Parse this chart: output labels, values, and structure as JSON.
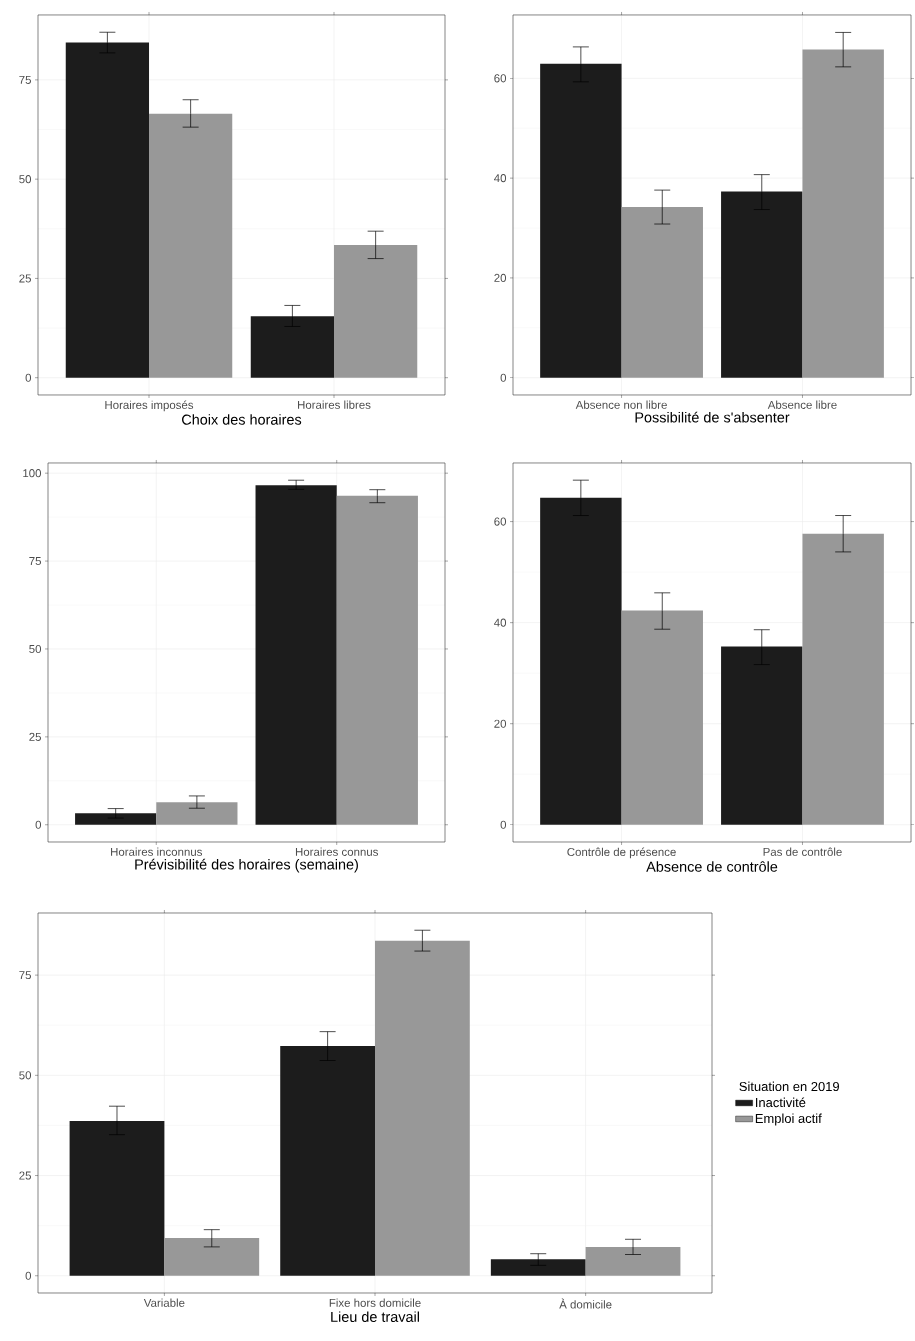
{
  "chart_data": [
    {
      "type": "bar",
      "xlabel": "Choix des horaires",
      "categories": [
        "Horaires imposés",
        "Horaires libres"
      ],
      "ylim": [
        -4.35,
        91.35
      ],
      "yticks": [
        0,
        25,
        50,
        75
      ],
      "grid": true,
      "series": [
        {
          "color": "#1c1c1c",
          "values": [
            84.4,
            15.5
          ],
          "errors": [
            [
              81.8,
              87.0
            ],
            [
              12.9,
              18.2
            ]
          ]
        },
        {
          "color": "#989898",
          "values": [
            66.5,
            33.4
          ],
          "errors": [
            [
              63.1,
              70.0
            ],
            [
              30.0,
              36.9
            ]
          ]
        }
      ]
    },
    {
      "type": "bar",
      "xlabel": "Possibilité de s'absenter",
      "categories": [
        "Absence non libre",
        "Absence libre"
      ],
      "ylim": [
        -3.46,
        72.7
      ],
      "yticks": [
        0,
        20,
        40,
        60
      ],
      "grid": true,
      "series": [
        {
          "color": "#1c1c1c",
          "values": [
            62.9,
            37.3
          ],
          "errors": [
            [
              59.3,
              66.3
            ],
            [
              33.7,
              40.7
            ]
          ]
        },
        {
          "color": "#989898",
          "values": [
            34.2,
            65.8
          ],
          "errors": [
            [
              30.8,
              37.6
            ],
            [
              62.3,
              69.2
            ]
          ]
        }
      ]
    },
    {
      "type": "bar",
      "xlabel": "Prévisibilité des horaires (semaine)",
      "categories": [
        "Horaires inconnus",
        "Horaires connus"
      ],
      "ylim": [
        -4.9,
        102.9
      ],
      "yticks": [
        0,
        25,
        50,
        75,
        100
      ],
      "grid": true,
      "series": [
        {
          "color": "#1c1c1c",
          "values": [
            3.3,
            96.6
          ],
          "errors": [
            [
              1.9,
              4.6
            ],
            [
              95.4,
              98.0
            ]
          ]
        },
        {
          "color": "#989898",
          "values": [
            6.4,
            93.6
          ],
          "errors": [
            [
              4.7,
              8.2
            ],
            [
              91.6,
              95.3
            ]
          ]
        }
      ]
    },
    {
      "type": "bar",
      "xlabel": "Absence de contrôle",
      "categories": [
        "Contrôle de présence",
        "Pas de contrôle"
      ],
      "ylim": [
        -3.41,
        71.6
      ],
      "yticks": [
        0,
        20,
        40,
        60
      ],
      "grid": true,
      "series": [
        {
          "color": "#1c1c1c",
          "values": [
            64.7,
            35.3
          ],
          "errors": [
            [
              61.2,
              68.2
            ],
            [
              31.7,
              38.6
            ]
          ]
        },
        {
          "color": "#989898",
          "values": [
            42.4,
            57.6
          ],
          "errors": [
            [
              38.7,
              45.9
            ],
            [
              54.0,
              61.2
            ]
          ]
        }
      ]
    },
    {
      "type": "bar",
      "xlabel": "Lieu de travail",
      "categories": [
        "Variable",
        "Fixe hors domicile",
        "À domicile"
      ],
      "ylim": [
        -4.3,
        90.5
      ],
      "yticks": [
        0,
        25,
        50,
        75
      ],
      "grid": true,
      "legend": "right",
      "legend_title": "Situation en 2019",
      "series": [
        {
          "name": "Inactivité",
          "color": "#1c1c1c",
          "values": [
            38.6,
            57.3,
            4.1
          ],
          "errors": [
            [
              35.2,
              42.3
            ],
            [
              53.7,
              60.9
            ],
            [
              2.6,
              5.5
            ]
          ]
        },
        {
          "name": "Emploi actif",
          "color": "#989898",
          "values": [
            9.4,
            83.6,
            7.2
          ],
          "errors": [
            [
              7.2,
              11.5
            ],
            [
              81.0,
              86.2
            ],
            [
              5.3,
              9.1
            ]
          ]
        }
      ]
    }
  ]
}
